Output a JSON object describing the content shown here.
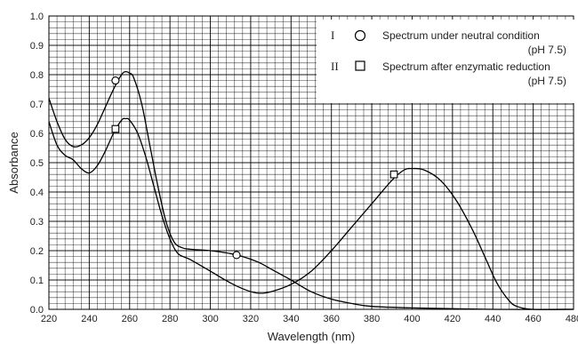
{
  "chart_data": {
    "type": "line",
    "xlabel": "Wavelength (nm)",
    "ylabel": "Absorbance",
    "xlim": [
      220,
      480
    ],
    "ylim": [
      0,
      1.0
    ],
    "x_ticks": [
      "220",
      "240",
      "260",
      "280",
      "300",
      "320",
      "340",
      "360",
      "380",
      "400",
      "420",
      "440",
      "460",
      "480"
    ],
    "y_ticks": [
      "0.0",
      "0.1",
      "0.2",
      "0.3",
      "0.4",
      "0.5",
      "0.6",
      "0.7",
      "0.8",
      "0.9",
      "1.0"
    ],
    "grid": true,
    "legend_position": "top-right",
    "series": [
      {
        "name": "Spectrum under neutral condition",
        "numeral": "I",
        "marker": "circle",
        "note": "(pH 7.5)",
        "points": [
          [
            220,
            0.72
          ],
          [
            224,
            0.64
          ],
          [
            228,
            0.58
          ],
          [
            232,
            0.555
          ],
          [
            236,
            0.56
          ],
          [
            240,
            0.585
          ],
          [
            244,
            0.63
          ],
          [
            248,
            0.69
          ],
          [
            252,
            0.75
          ],
          [
            256,
            0.8
          ],
          [
            258,
            0.81
          ],
          [
            260,
            0.805
          ],
          [
            262,
            0.79
          ],
          [
            266,
            0.7
          ],
          [
            270,
            0.56
          ],
          [
            274,
            0.42
          ],
          [
            278,
            0.3
          ],
          [
            282,
            0.23
          ],
          [
            286,
            0.21
          ],
          [
            290,
            0.205
          ],
          [
            300,
            0.2
          ],
          [
            310,
            0.19
          ],
          [
            316,
            0.18
          ],
          [
            324,
            0.16
          ],
          [
            332,
            0.13
          ],
          [
            340,
            0.1
          ],
          [
            350,
            0.06
          ],
          [
            360,
            0.035
          ],
          [
            370,
            0.02
          ],
          [
            380,
            0.01
          ],
          [
            400,
            0.005
          ],
          [
            440,
            0.0
          ],
          [
            480,
            0.0
          ]
        ],
        "marker_points": [
          [
            253,
            0.78
          ],
          [
            313,
            0.185
          ]
        ]
      },
      {
        "name": "Spectrum after enzymatic reduction",
        "numeral": "II",
        "marker": "square",
        "note": "(pH 7.5)",
        "points": [
          [
            220,
            0.64
          ],
          [
            224,
            0.56
          ],
          [
            228,
            0.525
          ],
          [
            232,
            0.51
          ],
          [
            236,
            0.48
          ],
          [
            240,
            0.465
          ],
          [
            244,
            0.49
          ],
          [
            248,
            0.54
          ],
          [
            252,
            0.6
          ],
          [
            256,
            0.645
          ],
          [
            258,
            0.65
          ],
          [
            260,
            0.645
          ],
          [
            264,
            0.6
          ],
          [
            268,
            0.52
          ],
          [
            272,
            0.42
          ],
          [
            276,
            0.32
          ],
          [
            280,
            0.24
          ],
          [
            284,
            0.19
          ],
          [
            290,
            0.17
          ],
          [
            300,
            0.13
          ],
          [
            310,
            0.09
          ],
          [
            318,
            0.065
          ],
          [
            324,
            0.055
          ],
          [
            330,
            0.06
          ],
          [
            340,
            0.085
          ],
          [
            350,
            0.13
          ],
          [
            360,
            0.2
          ],
          [
            370,
            0.28
          ],
          [
            380,
            0.36
          ],
          [
            390,
            0.44
          ],
          [
            396,
            0.475
          ],
          [
            400,
            0.48
          ],
          [
            406,
            0.475
          ],
          [
            414,
            0.44
          ],
          [
            422,
            0.37
          ],
          [
            430,
            0.27
          ],
          [
            436,
            0.18
          ],
          [
            442,
            0.09
          ],
          [
            448,
            0.03
          ],
          [
            452,
            0.01
          ],
          [
            460,
            0.0
          ],
          [
            480,
            0.0
          ]
        ],
        "marker_points": [
          [
            253,
            0.615
          ],
          [
            391,
            0.46
          ]
        ]
      }
    ]
  }
}
